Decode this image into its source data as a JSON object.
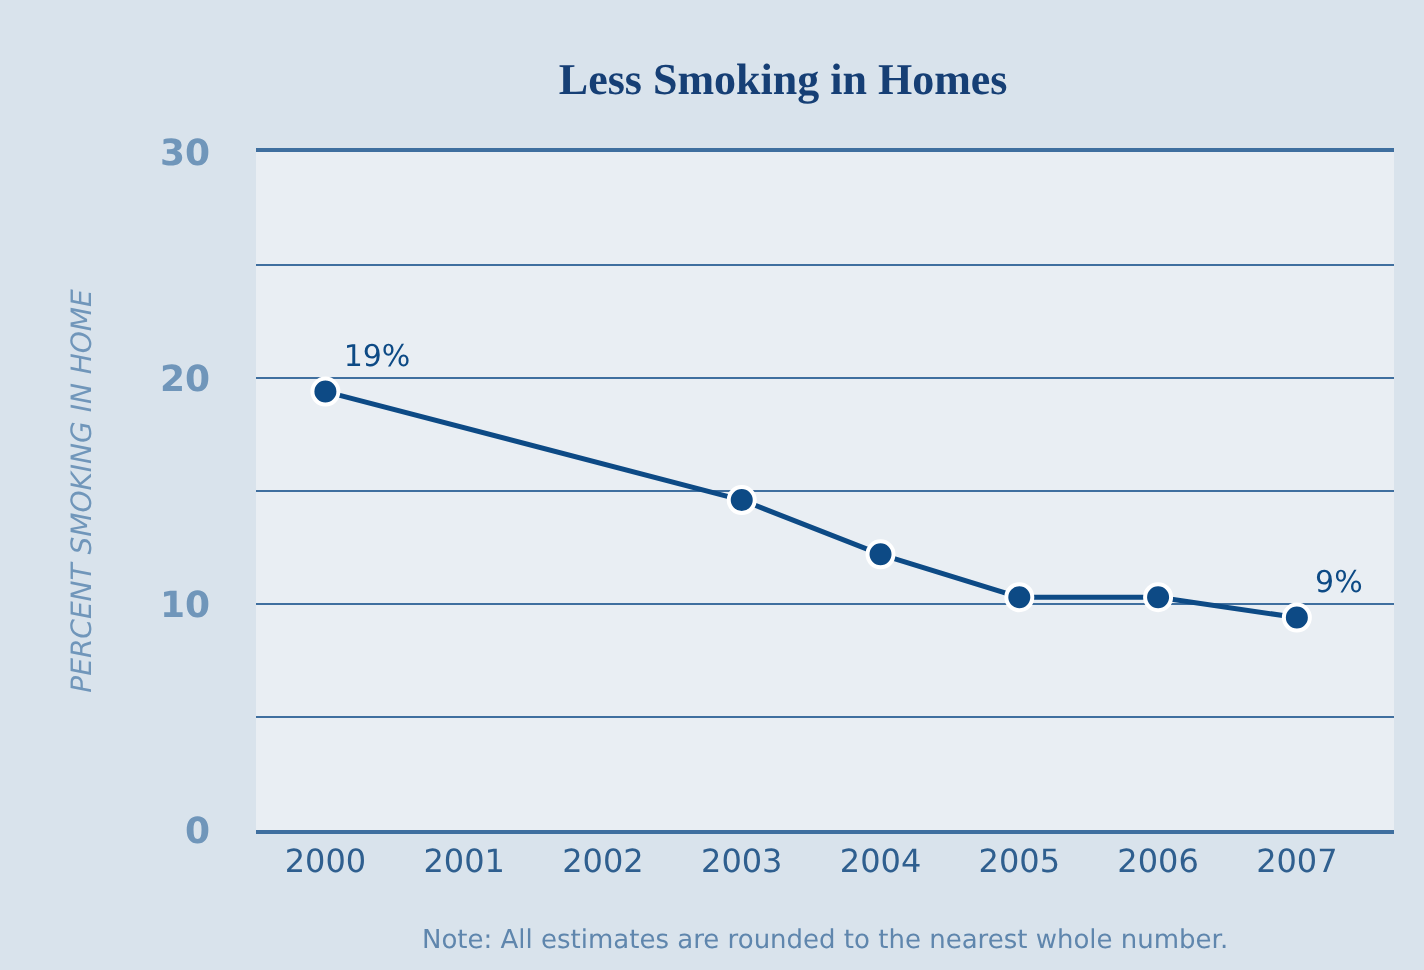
{
  "chart_data": {
    "type": "line",
    "title": "Less Smoking in Homes",
    "ylabel": "PERCENT SMOKING IN HOME",
    "annotations": [
      "Note: All estimates are rounded to the nearest whole number."
    ],
    "x": [
      2000,
      2003,
      2004,
      2005,
      2006,
      2007
    ],
    "series": [
      {
        "color": "#0d4a85",
        "values": [
          19.4,
          14.6,
          12.2,
          10.3,
          10.3,
          9.4
        ],
        "value_labels": [
          "19%",
          null,
          null,
          null,
          null,
          "9%"
        ]
      }
    ],
    "xlim": [
      1999.5,
      2007.7
    ],
    "xticks": [
      2000,
      2001,
      2002,
      2003,
      2004,
      2005,
      2006,
      2007
    ],
    "ylim": [
      0,
      30
    ],
    "yticks": [
      0,
      {
        "value": 5,
        "label": null
      },
      10,
      {
        "value": 15,
        "label": null
      },
      20,
      {
        "value": 25,
        "label": null
      },
      30
    ],
    "grid": "y",
    "marker": "circle",
    "line_style": "solid"
  }
}
